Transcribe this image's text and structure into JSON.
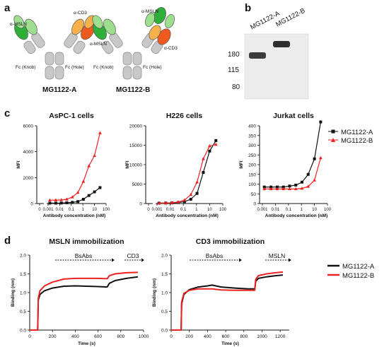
{
  "panels": {
    "a": "a",
    "b": "b",
    "c": "c",
    "d": "d"
  },
  "panel_a": {
    "antibody_A": {
      "name": "MG1122-A",
      "arm_left": "α-MSLN",
      "arm_right": "α-CD3",
      "fc_left": "Fc (Knob)",
      "fc_right": "Fc (Hole)"
    },
    "antibody_B": {
      "name": "MG1122-B",
      "arm_left_outer": "α-MSLN",
      "arm_left_top": "α-MSLN",
      "arm_right": "α-CD3",
      "fc_left": "Fc (Knob)",
      "fc_right": "Fc (Hole)"
    },
    "colors": {
      "msln": "#2fae3a",
      "msln_light": "#9ddf8f",
      "cd3": "#ef5b1e",
      "cd3_light": "#f8b04a",
      "fc": "#c8c8c8"
    }
  },
  "panel_b": {
    "lanes": [
      "MG1122-A",
      "MG1122-B"
    ],
    "markers": [
      "180",
      "115",
      "80"
    ]
  },
  "panel_c": {
    "legend": [
      "MG1122-A",
      "MG1122-B"
    ],
    "colors": {
      "A": "#111111",
      "B": "#ee2222"
    },
    "chart_data": [
      {
        "type": "line",
        "title": "AsPC-1 cells",
        "xlabel": "Antibody concentration (nM)",
        "ylabel": "MFI",
        "xscale": "log",
        "xticks": [
          "0",
          "0.001",
          "0.01",
          "0.1",
          "1",
          "10",
          "100"
        ],
        "yticks": [
          "0",
          "2000",
          "4000",
          "6000"
        ],
        "ylim": [
          0,
          6000
        ],
        "series": [
          {
            "name": "MG1122-A",
            "x": [
              0.0014,
              0.0046,
              0.0137,
              0.041,
              0.123,
              0.37,
              1.1,
              3.3,
              10,
              30
            ],
            "y": [
              30,
              30,
              40,
              60,
              90,
              150,
              330,
              620,
              900,
              1230
            ]
          },
          {
            "name": "MG1122-B",
            "x": [
              0.0014,
              0.0046,
              0.0137,
              0.041,
              0.123,
              0.37,
              1.1,
              3.3,
              10,
              30
            ],
            "y": [
              260,
              270,
              280,
              330,
              500,
              850,
              1700,
              2900,
              3700,
              5450
            ]
          }
        ]
      },
      {
        "type": "line",
        "title": "H226 cells",
        "xlabel": "Antibody concentration (nM)",
        "ylabel": "MFI",
        "xscale": "log",
        "xticks": [
          "0",
          "0.001",
          "0.01",
          "0.1",
          "1",
          "10",
          "100"
        ],
        "yticks": [
          "0",
          "5000",
          "10000",
          "15000",
          "20000"
        ],
        "ylim": [
          0,
          20000
        ],
        "series": [
          {
            "name": "MG1122-A",
            "x": [
              0.0014,
              0.0046,
              0.0137,
              0.041,
              0.123,
              0.37,
              1.1,
              3.3,
              10,
              30
            ],
            "y": [
              100,
              120,
              150,
              250,
              500,
              1100,
              2600,
              8000,
              13500,
              16200
            ]
          },
          {
            "name": "MG1122-B",
            "x": [
              0.0014,
              0.0046,
              0.0137,
              0.041,
              0.123,
              0.37,
              1.1,
              3.3,
              10,
              30
            ],
            "y": [
              100,
              150,
              200,
              400,
              900,
              2300,
              5500,
              11500,
              14800,
              15200
            ]
          }
        ]
      },
      {
        "type": "line",
        "title": "Jurkat cells",
        "xlabel": "Antibody concentration (nM)",
        "ylabel": "MFI",
        "xscale": "log",
        "xticks": [
          "0.001",
          "0.01",
          "0.1",
          "1",
          "10",
          "100"
        ],
        "yticks": [
          "0",
          "50",
          "100",
          "150",
          "200",
          "250",
          "300",
          "350",
          "400"
        ],
        "ylim": [
          0,
          400
        ],
        "series": [
          {
            "name": "MG1122-A",
            "x": [
              0.0014,
              0.0046,
              0.0137,
              0.041,
              0.123,
              0.37,
              1.1,
              3.3,
              10,
              30
            ],
            "y": [
              85,
              85,
              85,
              85,
              90,
              95,
              110,
              150,
              230,
              420
            ]
          },
          {
            "name": "MG1122-B",
            "x": [
              0.0014,
              0.0046,
              0.0137,
              0.041,
              0.123,
              0.37,
              1.1,
              3.3,
              10,
              30
            ],
            "y": [
              75,
              75,
              75,
              75,
              75,
              75,
              78,
              88,
              120,
              235
            ]
          }
        ]
      }
    ]
  },
  "panel_d": {
    "legend": [
      "MG1122-A",
      "MG1122-B"
    ],
    "chart_data": [
      {
        "type": "line",
        "title": "MSLN immobilization",
        "xlabel": "Time (s)",
        "ylabel": "Binding (nm)",
        "xlim": [
          0,
          1000
        ],
        "ylim": [
          0,
          2.0
        ],
        "xticks": [
          "0",
          "200",
          "400",
          "600",
          "800",
          "1000"
        ],
        "yticks": [
          "0.0",
          "0.5",
          "1.0",
          "1.5",
          "2.0"
        ],
        "annotations": [
          "BsAbs",
          "CD3"
        ],
        "series": [
          {
            "name": "MG1122-A",
            "x": [
              0,
              70,
              75,
              90,
              130,
              200,
              300,
              400,
              500,
              600,
              680,
              700,
              750,
              850,
              950
            ],
            "y": [
              0,
              0,
              0.8,
              0.95,
              1.05,
              1.12,
              1.17,
              1.18,
              1.17,
              1.16,
              1.15,
              1.25,
              1.32,
              1.38,
              1.42
            ]
          },
          {
            "name": "MG1122-B",
            "x": [
              0,
              70,
              75,
              90,
              130,
              200,
              300,
              400,
              500,
              600,
              680,
              700,
              750,
              850,
              950
            ],
            "y": [
              0,
              0,
              0.85,
              1.05,
              1.18,
              1.28,
              1.36,
              1.38,
              1.38,
              1.38,
              1.37,
              1.45,
              1.5,
              1.53,
              1.54
            ]
          }
        ]
      },
      {
        "type": "line",
        "title": "CD3 immobilization",
        "xlabel": "Time (s)",
        "ylabel": "Binding (nm)",
        "xlim": [
          0,
          1300
        ],
        "ylim": [
          0,
          2.0
        ],
        "xticks": [
          "0",
          "200",
          "400",
          "600",
          "800",
          "1000",
          "1200"
        ],
        "yticks": [
          "0.0",
          "0.5",
          "1.0",
          "1.5",
          "2.0"
        ],
        "annotations": [
          "BsAbs",
          "MSLN"
        ],
        "series": [
          {
            "name": "MG1122-A",
            "x": [
              0,
              110,
              115,
              140,
              200,
              300,
              400,
              450,
              550,
              700,
              850,
              920,
              930,
              960,
              1050,
              1150,
              1230
            ],
            "y": [
              0,
              0,
              0.7,
              0.95,
              1.08,
              1.15,
              1.18,
              1.2,
              1.15,
              1.12,
              1.1,
              1.1,
              1.3,
              1.38,
              1.42,
              1.45,
              1.47
            ]
          },
          {
            "name": "MG1122-B",
            "x": [
              0,
              110,
              115,
              140,
              200,
              300,
              400,
              450,
              550,
              700,
              850,
              920,
              930,
              960,
              1050,
              1150,
              1230
            ],
            "y": [
              0,
              0,
              0.75,
              0.98,
              1.06,
              1.1,
              1.1,
              1.1,
              1.07,
              1.06,
              1.06,
              1.06,
              1.35,
              1.45,
              1.5,
              1.53,
              1.55
            ]
          }
        ]
      }
    ]
  }
}
